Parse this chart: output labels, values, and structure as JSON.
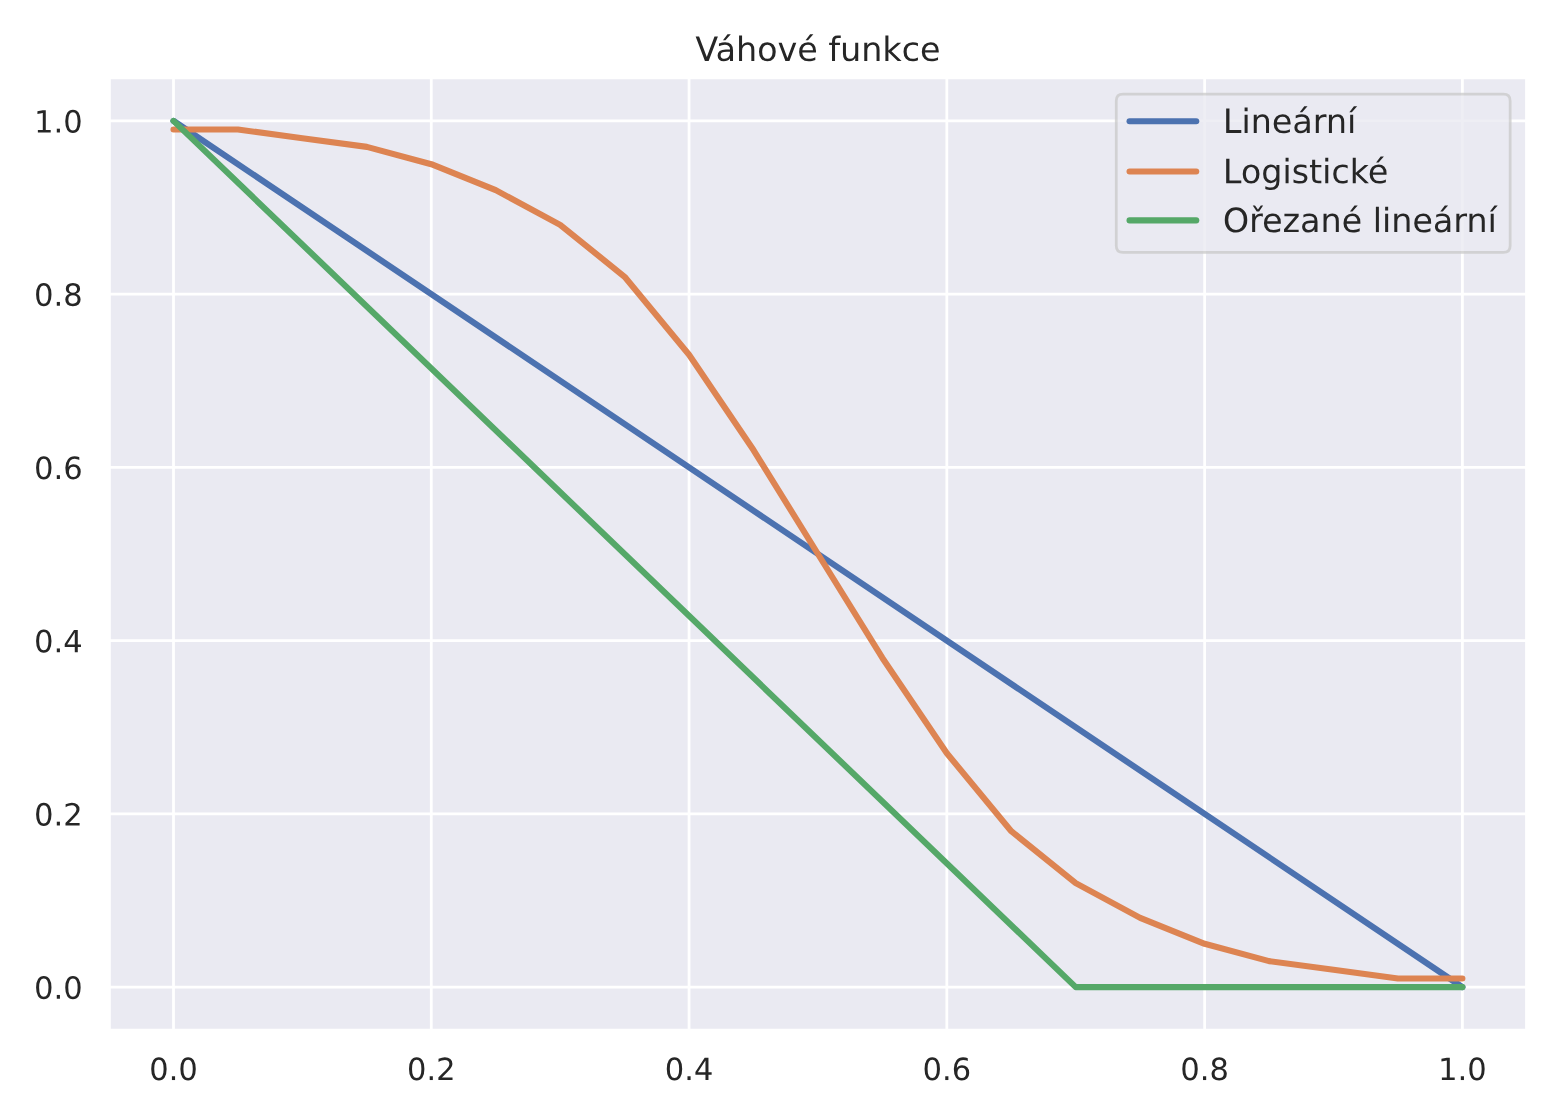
{
  "chart_data": {
    "type": "line",
    "title": "Váhové funkce",
    "series": [
      {
        "name": "Lineární",
        "color": "#4c72b0",
        "x": [
          0,
          1
        ],
        "values": [
          1,
          0
        ]
      },
      {
        "name": "Logistické",
        "color": "#dd8452",
        "x": [
          0,
          0.05,
          0.1,
          0.15,
          0.2,
          0.25,
          0.3,
          0.35,
          0.4,
          0.45,
          0.5,
          0.55,
          0.6,
          0.65,
          0.7,
          0.75,
          0.8,
          0.85,
          0.9,
          0.95,
          1.0
        ],
        "values": [
          0.99,
          0.99,
          0.98,
          0.97,
          0.95,
          0.92,
          0.88,
          0.82,
          0.73,
          0.62,
          0.5,
          0.38,
          0.27,
          0.18,
          0.12,
          0.08,
          0.05,
          0.03,
          0.02,
          0.01,
          0.01
        ]
      },
      {
        "name": "Ořezané lineární",
        "color": "#55a868",
        "x": [
          0,
          0.7,
          1
        ],
        "values": [
          1,
          0,
          0
        ]
      }
    ],
    "xlim": [
      -0.05,
      1.05
    ],
    "ylim": [
      -0.05,
      1.05
    ],
    "xticks": [
      {
        "value": 0,
        "label": "0.0"
      },
      {
        "value": 0.2,
        "label": "0.2"
      },
      {
        "value": 0.4,
        "label": "0.4"
      },
      {
        "value": 0.6,
        "label": "0.6"
      },
      {
        "value": 0.8,
        "label": "0.8"
      },
      {
        "value": 1,
        "label": "1.0"
      }
    ],
    "yticks": [
      {
        "value": 0,
        "label": "0.0"
      },
      {
        "value": 0.2,
        "label": "0.2"
      },
      {
        "value": 0.4,
        "label": "0.4"
      },
      {
        "value": 0.6,
        "label": "0.6"
      },
      {
        "value": 0.8,
        "label": "0.8"
      },
      {
        "value": 1,
        "label": "1.0"
      }
    ],
    "grid": true,
    "legend": "top right"
  }
}
